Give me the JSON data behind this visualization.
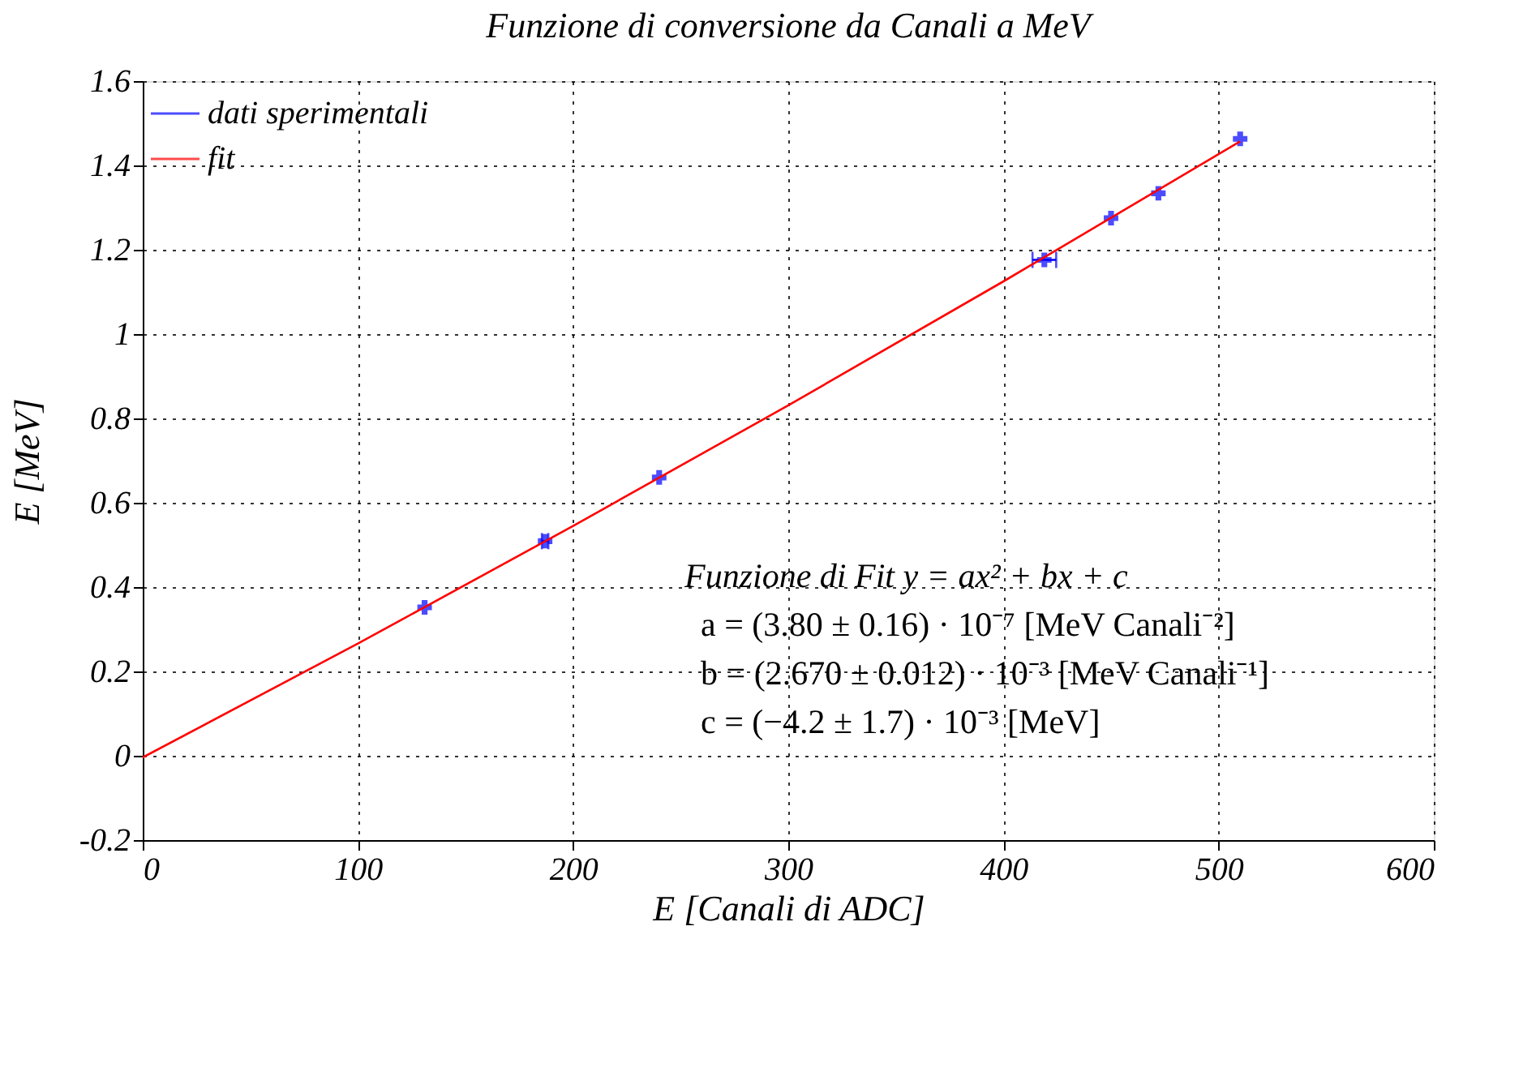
{
  "chart_data": {
    "type": "scatter",
    "title": "Funzione di conversione da Canali a MeV",
    "xlabel": "E [Canali di ADC]",
    "ylabel": "E [MeV]",
    "xlim": [
      0,
      600
    ],
    "xticks": [
      0,
      100,
      200,
      300,
      400,
      500,
      600
    ],
    "ylim": [
      -0.2,
      1.6
    ],
    "yticks": [
      -0.2,
      0,
      0.2,
      0.4,
      0.6,
      0.8,
      1,
      1.2,
      1.4,
      1.6
    ],
    "grid": true,
    "legend": "top left",
    "series": [
      {
        "name": "dati sperimentali",
        "color": "#0000ff",
        "marker": "cross",
        "x": [
          131,
          187,
          240,
          419,
          450,
          472,
          510
        ],
        "values": [
          0.352,
          0.509,
          0.66,
          1.176,
          1.275,
          1.334,
          1.463
        ],
        "xerrors": [
          null,
          1.5,
          null,
          5.5,
          null,
          null,
          null
        ]
      },
      {
        "name": "fit",
        "type": "line",
        "color": "#ff0000",
        "line_style": "solid",
        "x": [
          0,
          100,
          200,
          300,
          400,
          510
        ],
        "values": [
          -0.004,
          0.266,
          0.545,
          0.831,
          1.125,
          1.457
        ]
      }
    ],
    "annotations": [
      "Funzione di Fit y = ax² + bx + c",
      "a = (3.80 ± 0.16) · 10⁻⁷ [MeV Canali⁻²]",
      "b = (2.670 ± 0.012) · 10⁻³ [MeV Canali⁻¹]",
      "c = (−4.2 ± 1.7) · 10⁻³ [MeV]"
    ]
  }
}
